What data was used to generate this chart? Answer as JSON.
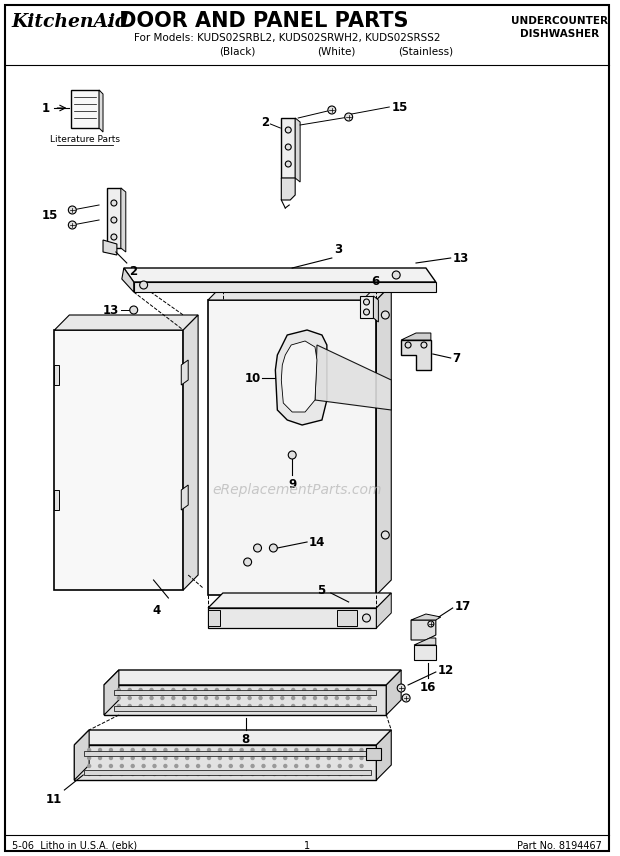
{
  "title_brand": "KitchenAid",
  "title_dot": ".",
  "title_main": " DOOR AND PANEL PARTS",
  "subtitle_line1": "For Models: KUDS02SRBL2, KUDS02SRWH2, KUDS02SRSS2",
  "subtitle_line2_parts": [
    "(Black)",
    "(White)",
    "(Stainless)"
  ],
  "top_right1": "UNDERCOUNTER",
  "top_right2": "DISHWASHER",
  "footer_left": "5-06  Litho in U.S.A. (ebk)",
  "footer_center": "1",
  "footer_right": "Part No. 8194467",
  "watermark": "eReplacementParts.com",
  "bg_color": "#ffffff",
  "lc": "#000000",
  "gray1": "#cccccc",
  "gray2": "#aaaaaa",
  "gray3": "#888888",
  "gray4": "#666666"
}
